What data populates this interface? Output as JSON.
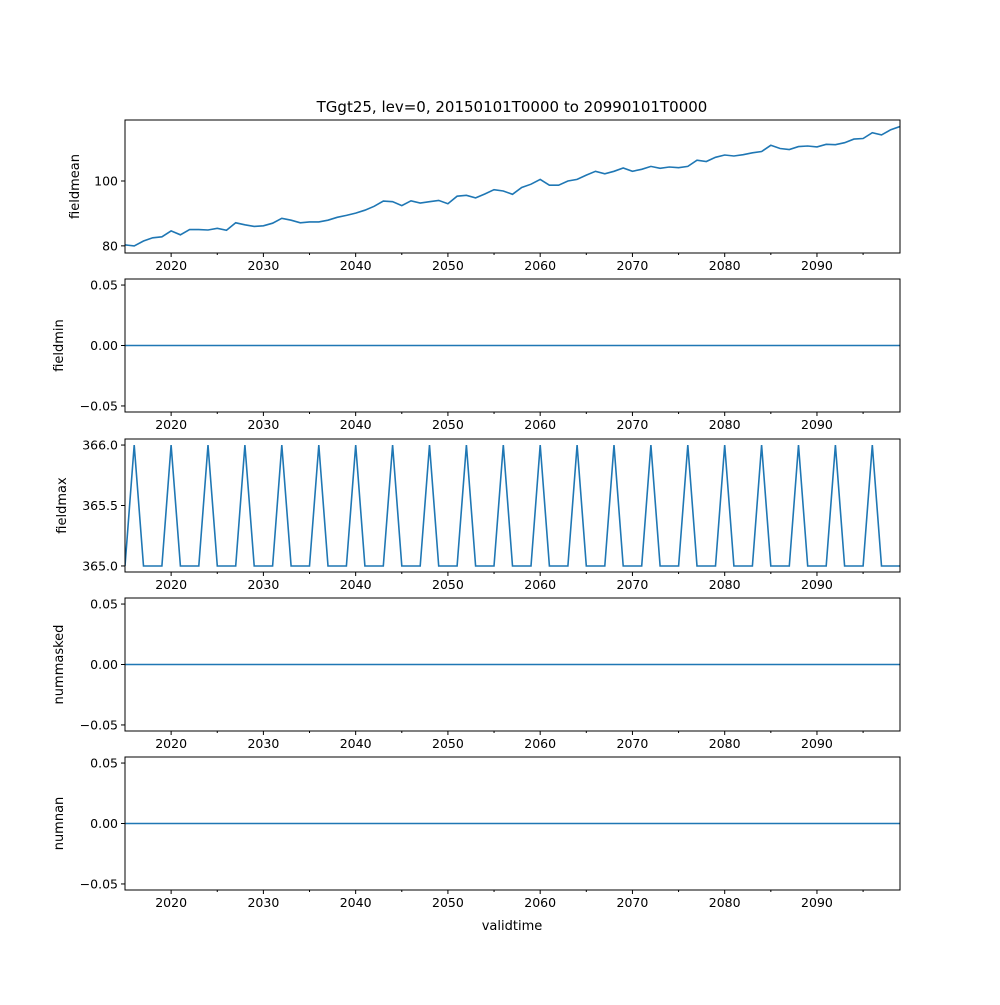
{
  "chart_data": {
    "type": "line",
    "title": "TGgt25, lev=0, 20150101T0000 to 20990101T0000",
    "xlabel": "validtime",
    "xlim": [
      2015,
      2099
    ],
    "x_ticks": [
      2020,
      2030,
      2040,
      2050,
      2060,
      2070,
      2080,
      2090
    ],
    "x_tick_labels": [
      "2020",
      "2030",
      "2040",
      "2050",
      "2060",
      "2070",
      "2080",
      "2090"
    ],
    "x_minor_ticks": [
      2025,
      2035,
      2045,
      2055,
      2065,
      2075,
      2085,
      2095
    ],
    "x": [
      2015,
      2016,
      2017,
      2018,
      2019,
      2020,
      2021,
      2022,
      2023,
      2024,
      2025,
      2026,
      2027,
      2028,
      2029,
      2030,
      2031,
      2032,
      2033,
      2034,
      2035,
      2036,
      2037,
      2038,
      2039,
      2040,
      2041,
      2042,
      2043,
      2044,
      2045,
      2046,
      2047,
      2048,
      2049,
      2050,
      2051,
      2052,
      2053,
      2054,
      2055,
      2056,
      2057,
      2058,
      2059,
      2060,
      2061,
      2062,
      2063,
      2064,
      2065,
      2066,
      2067,
      2068,
      2069,
      2070,
      2071,
      2072,
      2073,
      2074,
      2075,
      2076,
      2077,
      2078,
      2079,
      2080,
      2081,
      2082,
      2083,
      2084,
      2085,
      2086,
      2087,
      2088,
      2089,
      2090,
      2091,
      2092,
      2093,
      2094,
      2095,
      2096,
      2097,
      2098,
      2099
    ],
    "color": "#1f77b4",
    "panels": [
      {
        "ylabel": "fieldmean",
        "ylim": [
          77.8,
          118.8
        ],
        "y_ticks": [
          80,
          100
        ],
        "y_tick_labels": [
          "80",
          "100"
        ],
        "values": [
          80.3,
          80.0,
          81.5,
          82.5,
          82.8,
          84.6,
          83.4,
          85.0,
          85.0,
          84.9,
          85.4,
          84.8,
          87.1,
          86.5,
          86.0,
          86.2,
          87.0,
          88.5,
          87.9,
          87.1,
          87.4,
          87.4,
          87.9,
          88.8,
          89.4,
          90.1,
          91.0,
          92.2,
          93.8,
          93.6,
          92.4,
          93.9,
          93.2,
          93.6,
          94.0,
          93.0,
          95.3,
          95.6,
          94.8,
          96.0,
          97.3,
          96.9,
          95.9,
          98.0,
          99.0,
          100.5,
          98.7,
          98.7,
          100.0,
          100.5,
          101.8,
          103.0,
          102.2,
          103.0,
          104.0,
          103.0,
          103.6,
          104.5,
          103.9,
          104.3,
          104.1,
          104.5,
          106.4,
          106.0,
          107.3,
          108.0,
          107.7,
          108.1,
          108.7,
          109.1,
          111.0,
          110.0,
          109.7,
          110.6,
          110.8,
          110.5,
          111.3,
          111.2,
          111.8,
          112.9,
          113.1,
          114.9,
          114.2,
          115.8,
          116.8
        ]
      },
      {
        "ylabel": "fieldmin",
        "ylim": [
          -0.055,
          0.055
        ],
        "y_ticks": [
          -0.05,
          0.0,
          0.05
        ],
        "y_tick_labels": [
          "−0.05",
          "0.00",
          "0.05"
        ],
        "constant": 0
      },
      {
        "ylabel": "fieldmax",
        "ylim": [
          364.95,
          366.05
        ],
        "y_ticks": [
          365.0,
          365.5,
          366.0
        ],
        "y_tick_labels": [
          "365.0",
          "365.5",
          "366.0"
        ],
        "rule": "366 in leap years, otherwise 365"
      },
      {
        "ylabel": "nummasked",
        "ylim": [
          -0.055,
          0.055
        ],
        "y_ticks": [
          -0.05,
          0.0,
          0.05
        ],
        "y_tick_labels": [
          "−0.05",
          "0.00",
          "0.05"
        ],
        "constant": 0
      },
      {
        "ylabel": "numnan",
        "ylim": [
          -0.055,
          0.055
        ],
        "y_ticks": [
          -0.05,
          0.0,
          0.05
        ],
        "y_tick_labels": [
          "−0.05",
          "0.00",
          "0.05"
        ],
        "constant": 0
      }
    ]
  }
}
